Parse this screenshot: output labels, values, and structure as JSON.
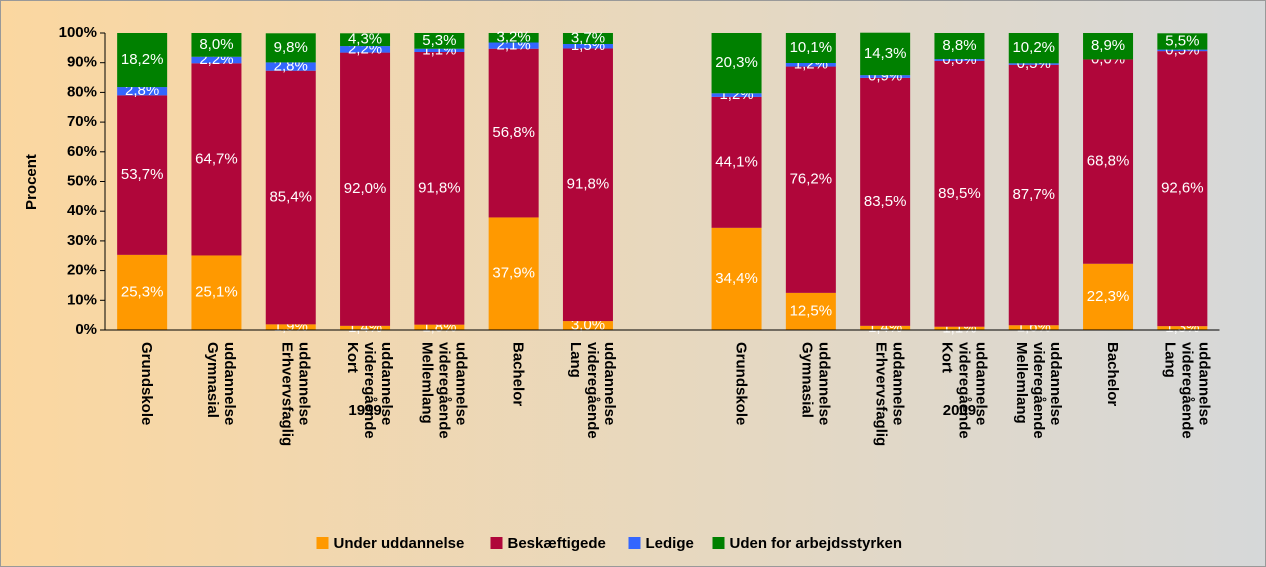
{
  "chart_data": {
    "type": "stacked_bar",
    "ylabel": "Procent",
    "ylim": [
      0,
      100
    ],
    "yticks": [
      {
        "value": 0,
        "label": "0%"
      },
      {
        "value": 10,
        "label": "10%"
      },
      {
        "value": 20,
        "label": "20%"
      },
      {
        "value": 30,
        "label": "30%"
      },
      {
        "value": 40,
        "label": "40%"
      },
      {
        "value": 50,
        "label": "50%"
      },
      {
        "value": 60,
        "label": "60%"
      },
      {
        "value": 70,
        "label": "70%"
      },
      {
        "value": 80,
        "label": "80%"
      },
      {
        "value": 90,
        "label": "90%"
      },
      {
        "value": 100,
        "label": "100%"
      }
    ],
    "groups": [
      {
        "name": "1999",
        "categories": [
          "Grundskole",
          "Gymnasial uddannelse",
          "Erhvervsfaglig uddannelse",
          "Kort videregående uddannelse",
          "Mellemlang videregående uddannelse",
          "Bachelor",
          "Lang videregående uddannelse"
        ]
      },
      {
        "name": "2009",
        "categories": [
          "Grundskole",
          "Gymnasial uddannelse",
          "Erhvervsfaglig uddannelse",
          "Kort videregående uddannelse",
          "Mellemlang videregående uddannelse",
          "Bachelor",
          "Lang videregående uddannelse"
        ]
      }
    ],
    "series": [
      {
        "name": "Under uddannelse",
        "color": "#ff9900",
        "values": [
          25.3,
          25.1,
          1.9,
          1.4,
          1.8,
          37.9,
          3.0,
          34.4,
          12.5,
          1.4,
          1.1,
          1.6,
          22.3,
          1.3
        ],
        "value_labels": [
          "25,3%",
          "25,1%",
          "1,9%",
          "1,4%",
          "1,8%",
          "37,9%",
          "3,0%",
          "34,4%",
          "12,5%",
          "1,4%",
          "1,1%",
          "1,6%",
          "22,3%",
          "1,3%"
        ]
      },
      {
        "name": "Beskæftigede",
        "color": "#b0063a",
        "values": [
          53.7,
          64.7,
          85.4,
          92.0,
          91.8,
          56.8,
          91.8,
          44.1,
          76.2,
          83.5,
          89.5,
          87.7,
          68.8,
          92.6
        ],
        "value_labels": [
          "53,7%",
          "64,7%",
          "85,4%",
          "92,0%",
          "91,8%",
          "56,8%",
          "91,8%",
          "44,1%",
          "76,2%",
          "83,5%",
          "89,5%",
          "87,7%",
          "68,8%",
          "92,6%"
        ]
      },
      {
        "name": "Ledige",
        "color": "#3366ff",
        "values": [
          2.8,
          2.2,
          2.8,
          2.2,
          1.1,
          2.1,
          1.5,
          1.2,
          1.2,
          0.9,
          0.6,
          0.5,
          0.0,
          0.5
        ],
        "value_labels": [
          "2,8%",
          "2,2%",
          "2,8%",
          "2,2%",
          "1,1%",
          "2,1%",
          "1,5%",
          "1,2%",
          "1,2%",
          "0,9%",
          "0,6%",
          "0,5%",
          "0,0%",
          "0,5%"
        ]
      },
      {
        "name": "Uden for arbejdsstyrken",
        "color": "#008000",
        "values": [
          18.2,
          8.0,
          9.8,
          4.3,
          5.3,
          3.2,
          3.7,
          20.3,
          10.1,
          14.3,
          8.8,
          10.2,
          8.9,
          5.5
        ],
        "value_labels": [
          "18,2%",
          "8,0%",
          "9,8%",
          "4,3%",
          "5,3%",
          "3,2%",
          "3,7%",
          "20,3%",
          "10,1%",
          "14,3%",
          "8,8%",
          "10,2%",
          "8,9%",
          "5,5%"
        ]
      }
    ],
    "legend": "bottom"
  }
}
